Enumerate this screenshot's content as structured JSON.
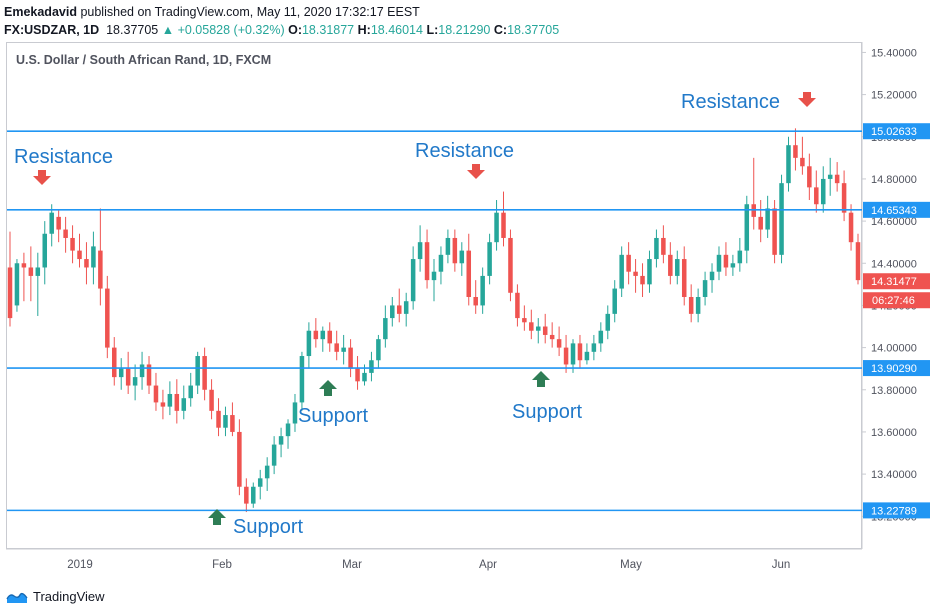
{
  "header": {
    "author": "Emekadavid",
    "published_text": "published on TradingView.com, May 11, 2020 17:32:17 EEST",
    "symbol": "FX:USDZAR, 1D",
    "last": "18.37705",
    "change": "▲ +0.05828 (+0.32%)",
    "o_label": "O:",
    "o_value": "18.31877",
    "h_label": "H:",
    "h_value": "18.46014",
    "l_label": "L:",
    "l_value": "18.21290",
    "c_label": "C:",
    "c_value": "18.37705"
  },
  "colors": {
    "up": "#26a69a",
    "down": "#ef5350",
    "line": "#2196f3",
    "label_text": "#2179c9",
    "arrow_red": "#e8514a",
    "arrow_green": "#2e7d55"
  },
  "chart_data": {
    "type": "candlestick",
    "title": "U.S. Dollar / South African Rand, 1D, FXCM",
    "ylim": [
      13.04,
      15.44
    ],
    "y_ticks": [
      "15.40000",
      "15.20000",
      "15.00000",
      "14.80000",
      "14.60000",
      "14.40000",
      "14.20000",
      "14.00000",
      "13.80000",
      "13.60000",
      "13.40000",
      "13.20000"
    ],
    "x_ticks": [
      "2019",
      "Feb",
      "Mar",
      "Apr",
      "May",
      "Jun"
    ],
    "horizontal_lines": [
      {
        "value": 15.02633,
        "label": "15.02633"
      },
      {
        "value": 14.65343,
        "label": "14.65343"
      },
      {
        "value": 13.9029,
        "label": "13.90290"
      },
      {
        "value": 13.22789,
        "label": "13.22789"
      }
    ],
    "price_label": {
      "value": 14.31477,
      "label": "14.31477",
      "time": "06:27:46"
    },
    "annotations": [
      {
        "text": "Resistance",
        "kind": "resistance"
      },
      {
        "text": "Resistance",
        "kind": "resistance"
      },
      {
        "text": "Resistance",
        "kind": "resistance"
      },
      {
        "text": "Support",
        "kind": "support"
      },
      {
        "text": "Support",
        "kind": "support"
      },
      {
        "text": "Support",
        "kind": "support"
      }
    ],
    "candles": [
      [
        14.38,
        14.55,
        14.1,
        14.14
      ],
      [
        14.2,
        14.42,
        14.17,
        14.4
      ],
      [
        14.4,
        14.45,
        14.22,
        14.38
      ],
      [
        14.38,
        14.48,
        14.22,
        14.34
      ],
      [
        14.34,
        14.45,
        14.15,
        14.38
      ],
      [
        14.38,
        14.6,
        14.3,
        14.54
      ],
      [
        14.54,
        14.68,
        14.48,
        14.64
      ],
      [
        14.62,
        14.65,
        14.5,
        14.56
      ],
      [
        14.56,
        14.62,
        14.45,
        14.52
      ],
      [
        14.52,
        14.58,
        14.4,
        14.46
      ],
      [
        14.46,
        14.54,
        14.38,
        14.42
      ],
      [
        14.42,
        14.5,
        14.3,
        14.38
      ],
      [
        14.38,
        14.55,
        14.3,
        14.48
      ],
      [
        14.46,
        14.66,
        14.2,
        14.28
      ],
      [
        14.28,
        14.34,
        13.95,
        14.0
      ],
      [
        14.0,
        14.05,
        13.82,
        13.86
      ],
      [
        13.86,
        13.95,
        13.8,
        13.9
      ],
      [
        13.9,
        13.98,
        13.78,
        13.82
      ],
      [
        13.82,
        13.92,
        13.75,
        13.86
      ],
      [
        13.86,
        13.98,
        13.8,
        13.92
      ],
      [
        13.92,
        13.96,
        13.78,
        13.82
      ],
      [
        13.82,
        13.88,
        13.7,
        13.74
      ],
      [
        13.74,
        13.8,
        13.66,
        13.72
      ],
      [
        13.72,
        13.84,
        13.68,
        13.78
      ],
      [
        13.78,
        13.85,
        13.64,
        13.7
      ],
      [
        13.7,
        13.82,
        13.66,
        13.76
      ],
      [
        13.76,
        13.88,
        13.72,
        13.82
      ],
      [
        13.82,
        13.98,
        13.78,
        13.96
      ],
      [
        13.96,
        14.0,
        13.75,
        13.8
      ],
      [
        13.8,
        13.85,
        13.66,
        13.7
      ],
      [
        13.7,
        13.76,
        13.58,
        13.62
      ],
      [
        13.62,
        13.72,
        13.58,
        13.68
      ],
      [
        13.68,
        13.74,
        13.58,
        13.6
      ],
      [
        13.6,
        13.66,
        13.3,
        13.34
      ],
      [
        13.34,
        13.38,
        13.22,
        13.26
      ],
      [
        13.26,
        13.36,
        13.24,
        13.34
      ],
      [
        13.34,
        13.42,
        13.28,
        13.38
      ],
      [
        13.38,
        13.48,
        13.32,
        13.44
      ],
      [
        13.44,
        13.58,
        13.4,
        13.54
      ],
      [
        13.54,
        13.62,
        13.48,
        13.58
      ],
      [
        13.58,
        13.66,
        13.52,
        13.64
      ],
      [
        13.64,
        13.78,
        13.6,
        13.74
      ],
      [
        13.74,
        13.98,
        13.7,
        13.96
      ],
      [
        13.96,
        14.12,
        13.9,
        14.08
      ],
      [
        14.08,
        14.14,
        14.0,
        14.04
      ],
      [
        14.04,
        14.1,
        13.98,
        14.08
      ],
      [
        14.08,
        14.12,
        13.98,
        14.02
      ],
      [
        14.02,
        14.08,
        13.94,
        13.98
      ],
      [
        13.98,
        14.06,
        13.92,
        14.0
      ],
      [
        14.0,
        14.04,
        13.86,
        13.9
      ],
      [
        13.9,
        13.96,
        13.8,
        13.84
      ],
      [
        13.84,
        13.92,
        13.82,
        13.88
      ],
      [
        13.88,
        13.98,
        13.84,
        13.94
      ],
      [
        13.94,
        14.06,
        13.9,
        14.04
      ],
      [
        14.04,
        14.2,
        14.0,
        14.14
      ],
      [
        14.14,
        14.24,
        14.1,
        14.2
      ],
      [
        14.2,
        14.28,
        14.12,
        14.16
      ],
      [
        14.16,
        14.26,
        14.1,
        14.22
      ],
      [
        14.22,
        14.48,
        14.18,
        14.42
      ],
      [
        14.42,
        14.58,
        14.36,
        14.5
      ],
      [
        14.5,
        14.56,
        14.28,
        14.32
      ],
      [
        14.32,
        14.42,
        14.22,
        14.36
      ],
      [
        14.36,
        14.48,
        14.3,
        14.44
      ],
      [
        14.44,
        14.56,
        14.4,
        14.52
      ],
      [
        14.52,
        14.56,
        14.36,
        14.4
      ],
      [
        14.4,
        14.5,
        14.34,
        14.46
      ],
      [
        14.46,
        14.54,
        14.2,
        14.24
      ],
      [
        14.24,
        14.32,
        14.16,
        14.2
      ],
      [
        14.2,
        14.38,
        14.16,
        14.34
      ],
      [
        14.34,
        14.54,
        14.3,
        14.5
      ],
      [
        14.5,
        14.7,
        14.46,
        14.64
      ],
      [
        14.64,
        14.74,
        14.48,
        14.52
      ],
      [
        14.52,
        14.56,
        14.22,
        14.26
      ],
      [
        14.26,
        14.3,
        14.1,
        14.14
      ],
      [
        14.14,
        14.2,
        14.08,
        14.12
      ],
      [
        14.12,
        14.18,
        14.04,
        14.08
      ],
      [
        14.08,
        14.14,
        14.02,
        14.1
      ],
      [
        14.1,
        14.16,
        14.02,
        14.06
      ],
      [
        14.06,
        14.12,
        14.0,
        14.04
      ],
      [
        14.04,
        14.1,
        13.96,
        14.0
      ],
      [
        14.0,
        14.06,
        13.88,
        13.92
      ],
      [
        13.92,
        14.04,
        13.88,
        14.02
      ],
      [
        14.02,
        14.06,
        13.9,
        13.94
      ],
      [
        13.94,
        14.02,
        13.92,
        13.98
      ],
      [
        13.98,
        14.06,
        13.94,
        14.02
      ],
      [
        14.02,
        14.12,
        13.98,
        14.08
      ],
      [
        14.08,
        14.2,
        14.04,
        14.16
      ],
      [
        14.16,
        14.32,
        14.12,
        14.28
      ],
      [
        14.28,
        14.48,
        14.24,
        14.44
      ],
      [
        14.44,
        14.5,
        14.3,
        14.36
      ],
      [
        14.36,
        14.42,
        14.26,
        14.34
      ],
      [
        14.34,
        14.4,
        14.24,
        14.3
      ],
      [
        14.3,
        14.46,
        14.26,
        14.42
      ],
      [
        14.42,
        14.56,
        14.38,
        14.52
      ],
      [
        14.52,
        14.58,
        14.4,
        14.44
      ],
      [
        14.44,
        14.5,
        14.3,
        14.34
      ],
      [
        14.34,
        14.46,
        14.3,
        14.42
      ],
      [
        14.42,
        14.48,
        14.2,
        14.24
      ],
      [
        14.24,
        14.3,
        14.12,
        14.16
      ],
      [
        14.16,
        14.28,
        14.12,
        14.24
      ],
      [
        14.24,
        14.36,
        14.2,
        14.32
      ],
      [
        14.32,
        14.4,
        14.26,
        14.36
      ],
      [
        14.36,
        14.48,
        14.32,
        14.44
      ],
      [
        14.44,
        14.5,
        14.34,
        14.38
      ],
      [
        14.38,
        14.44,
        14.34,
        14.4
      ],
      [
        14.4,
        14.52,
        14.36,
        14.46
      ],
      [
        14.46,
        14.72,
        14.4,
        14.68
      ],
      [
        14.68,
        14.9,
        14.56,
        14.62
      ],
      [
        14.62,
        14.7,
        14.5,
        14.56
      ],
      [
        14.56,
        14.72,
        14.52,
        14.66
      ],
      [
        14.66,
        14.7,
        14.4,
        14.44
      ],
      [
        14.44,
        14.82,
        14.4,
        14.78
      ],
      [
        14.78,
        15.0,
        14.74,
        14.96
      ],
      [
        14.96,
        15.04,
        14.84,
        14.9
      ],
      [
        14.9,
        15.0,
        14.82,
        14.86
      ],
      [
        14.86,
        14.92,
        14.7,
        14.76
      ],
      [
        14.76,
        14.84,
        14.64,
        14.68
      ],
      [
        14.68,
        14.86,
        14.64,
        14.8
      ],
      [
        14.8,
        14.9,
        14.72,
        14.82
      ],
      [
        14.82,
        14.88,
        14.74,
        14.78
      ],
      [
        14.78,
        14.84,
        14.6,
        14.64
      ],
      [
        14.64,
        14.68,
        14.46,
        14.5
      ],
      [
        14.5,
        14.54,
        14.3,
        14.32
      ]
    ]
  },
  "footer": {
    "brand": "TradingView"
  }
}
